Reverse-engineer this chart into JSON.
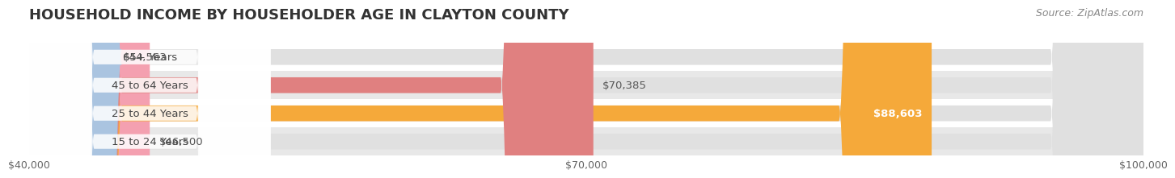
{
  "title": "HOUSEHOLD INCOME BY HOUSEHOLDER AGE IN CLAYTON COUNTY",
  "source": "Source: ZipAtlas.com",
  "categories": [
    "15 to 24 Years",
    "25 to 44 Years",
    "45 to 64 Years",
    "65+ Years"
  ],
  "values": [
    46500,
    88603,
    70385,
    44563
  ],
  "bar_colors": [
    "#f4a0b0",
    "#f5a93a",
    "#e08080",
    "#aac4e0"
  ],
  "bar_bg_color": "#f0f0f0",
  "background_color": "#ffffff",
  "stripe_color": "#e8e8e8",
  "xlim": [
    40000,
    100000
  ],
  "xticks": [
    40000,
    70000,
    100000
  ],
  "xtick_labels": [
    "$40,000",
    "$70,000",
    "$100,000"
  ],
  "value_labels": [
    "$46,500",
    "$88,603",
    "$70,385",
    "$44,563"
  ],
  "label_inside": [
    false,
    true,
    false,
    false
  ],
  "title_fontsize": 13,
  "label_fontsize": 9.5,
  "tick_fontsize": 9,
  "source_fontsize": 9
}
